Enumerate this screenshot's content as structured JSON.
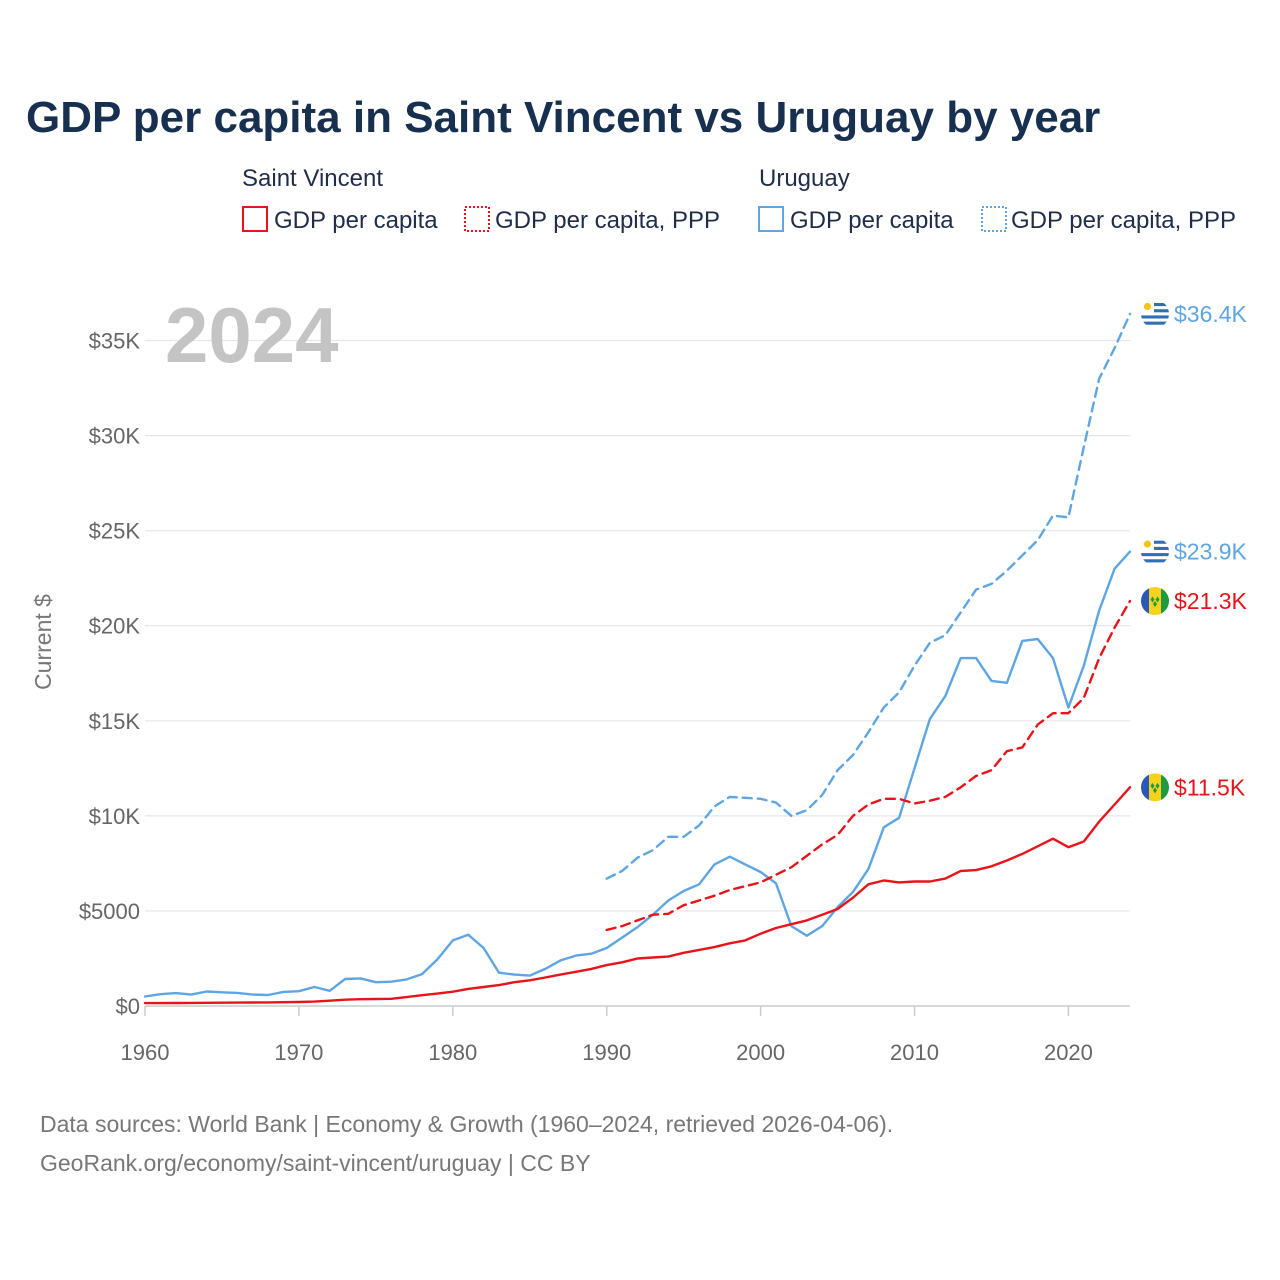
{
  "chart_data": {
    "type": "line",
    "title": "GDP per capita in Saint Vincent vs Uruguay by year",
    "year_label": "2024",
    "ylabel": "Current $",
    "xlabel": "",
    "xlim": [
      1960,
      2024
    ],
    "ylim": [
      0,
      37500
    ],
    "x_ticks": [
      {
        "value": 1960,
        "label": "1960"
      },
      {
        "value": 1970,
        "label": "1970"
      },
      {
        "value": 1980,
        "label": "1980"
      },
      {
        "value": 1990,
        "label": "1990"
      },
      {
        "value": 2000,
        "label": "2000"
      },
      {
        "value": 2010,
        "label": "2010"
      },
      {
        "value": 2020,
        "label": "2020"
      }
    ],
    "y_ticks": [
      {
        "value": 0,
        "label": "$0"
      },
      {
        "value": 5000,
        "label": "$5000"
      },
      {
        "value": 10000,
        "label": "$10K"
      },
      {
        "value": 15000,
        "label": "$15K"
      },
      {
        "value": 20000,
        "label": "$20K"
      },
      {
        "value": 25000,
        "label": "$25K"
      },
      {
        "value": 30000,
        "label": "$30K"
      },
      {
        "value": 35000,
        "label": "$35K"
      }
    ],
    "grid": true,
    "legend": {
      "groups": [
        {
          "country": "Saint Vincent",
          "items": [
            "GDP per capita",
            "GDP per capita, PPP"
          ]
        },
        {
          "country": "Uruguay",
          "items": [
            "GDP per capita",
            "GDP per capita, PPP"
          ]
        }
      ]
    },
    "series": [
      {
        "name": "Uruguay GDP per capita",
        "country": "Uruguay",
        "color": "#5ea5e4",
        "dashed": false,
        "end_label": "$23.9K",
        "flag": "uruguay-flag",
        "x": [
          1960,
          1961,
          1962,
          1963,
          1964,
          1965,
          1966,
          1967,
          1968,
          1969,
          1970,
          1971,
          1972,
          1973,
          1974,
          1975,
          1976,
          1977,
          1978,
          1979,
          1980,
          1981,
          1982,
          1983,
          1984,
          1985,
          1986,
          1987,
          1988,
          1989,
          1990,
          1991,
          1992,
          1993,
          1994,
          1995,
          1996,
          1997,
          1998,
          1999,
          2000,
          2001,
          2002,
          2003,
          2004,
          2005,
          2006,
          2007,
          2008,
          2009,
          2010,
          2011,
          2012,
          2013,
          2014,
          2015,
          2016,
          2017,
          2018,
          2019,
          2020,
          2021,
          2022,
          2023,
          2024
        ],
        "values": [
          500,
          620,
          680,
          600,
          760,
          720,
          690,
          600,
          580,
          740,
          780,
          1000,
          800,
          1420,
          1450,
          1250,
          1280,
          1400,
          1680,
          2450,
          3450,
          3750,
          3050,
          1750,
          1650,
          1600,
          1950,
          2400,
          2650,
          2750,
          3050,
          3600,
          4150,
          4800,
          5550,
          6050,
          6400,
          7450,
          7850,
          7450,
          7050,
          6450,
          4200,
          3700,
          4200,
          5200,
          6000,
          7200,
          9400,
          9900,
          12500,
          15100,
          16300,
          18300,
          18300,
          17100,
          17000,
          19200,
          19300,
          18300,
          15700,
          17900,
          20800,
          23000,
          23900
        ]
      },
      {
        "name": "Uruguay GDP per capita, PPP",
        "country": "Uruguay",
        "color": "#5ea5e4",
        "dashed": true,
        "end_label": "$36.4K",
        "flag": "uruguay-flag",
        "x": [
          1990,
          1991,
          1992,
          1993,
          1994,
          1995,
          1996,
          1997,
          1998,
          1999,
          2000,
          2001,
          2002,
          2003,
          2004,
          2005,
          2006,
          2007,
          2008,
          2009,
          2010,
          2011,
          2012,
          2013,
          2014,
          2015,
          2016,
          2017,
          2018,
          2019,
          2020,
          2021,
          2022,
          2023,
          2024
        ],
        "values": [
          6700,
          7100,
          7800,
          8200,
          8900,
          8900,
          9500,
          10500,
          11000,
          10950,
          10900,
          10700,
          10000,
          10300,
          11100,
          12400,
          13200,
          14400,
          15700,
          16500,
          17900,
          19100,
          19500,
          20700,
          21900,
          22200,
          22900,
          23700,
          24500,
          25800,
          25700,
          29400,
          33000,
          34600,
          36400
        ]
      },
      {
        "name": "Saint Vincent GDP per capita",
        "country": "Saint Vincent",
        "color": "#e8141a",
        "dashed": false,
        "end_label": "$11.5K",
        "flag": "saint-vincent-flag",
        "x": [
          1960,
          1961,
          1962,
          1963,
          1964,
          1965,
          1966,
          1967,
          1968,
          1969,
          1970,
          1971,
          1972,
          1973,
          1974,
          1975,
          1976,
          1977,
          1978,
          1979,
          1980,
          1981,
          1982,
          1983,
          1984,
          1985,
          1986,
          1987,
          1988,
          1989,
          1990,
          1991,
          1992,
          1993,
          1994,
          1995,
          1996,
          1997,
          1998,
          1999,
          2000,
          2001,
          2002,
          2003,
          2004,
          2005,
          2006,
          2007,
          2008,
          2009,
          2010,
          2011,
          2012,
          2013,
          2014,
          2015,
          2016,
          2017,
          2018,
          2019,
          2020,
          2021,
          2022,
          2023,
          2024
        ],
        "values": [
          150,
          155,
          160,
          165,
          170,
          175,
          180,
          185,
          190,
          200,
          210,
          230,
          280,
          330,
          360,
          370,
          380,
          470,
          570,
          650,
          750,
          900,
          1000,
          1100,
          1250,
          1350,
          1500,
          1650,
          1800,
          1950,
          2150,
          2300,
          2500,
          2550,
          2600,
          2800,
          2950,
          3100,
          3300,
          3450,
          3800,
          4100,
          4300,
          4500,
          4800,
          5100,
          5700,
          6400,
          6600,
          6500,
          6550,
          6550,
          6700,
          7100,
          7150,
          7350,
          7650,
          8000,
          8400,
          8800,
          8350,
          8650,
          9700,
          10600,
          11500
        ]
      },
      {
        "name": "Saint Vincent GDP per capita, PPP",
        "country": "Saint Vincent",
        "color": "#e8141a",
        "dashed": true,
        "end_label": "$21.3K",
        "flag": "saint-vincent-flag",
        "x": [
          1990,
          1991,
          1992,
          1993,
          1994,
          1995,
          1996,
          1997,
          1998,
          1999,
          2000,
          2001,
          2002,
          2003,
          2004,
          2005,
          2006,
          2007,
          2008,
          2009,
          2010,
          2011,
          2012,
          2013,
          2014,
          2015,
          2016,
          2017,
          2018,
          2019,
          2020,
          2021,
          2022,
          2023,
          2024
        ],
        "values": [
          4000,
          4200,
          4500,
          4800,
          4850,
          5300,
          5550,
          5800,
          6100,
          6300,
          6500,
          6900,
          7300,
          7900,
          8500,
          9000,
          10000,
          10600,
          10900,
          10900,
          10650,
          10800,
          11000,
          11500,
          12100,
          12400,
          13400,
          13600,
          14800,
          15400,
          15400,
          16200,
          18300,
          19900,
          21300
        ]
      }
    ]
  },
  "source": {
    "line1": "Data sources: World Bank | Economy & Growth (1960–2024, retrieved 2026-04-06).",
    "line2": "GeoRank.org/economy/saint-vincent/uruguay | CC BY"
  },
  "colors": {
    "saint_vincent": "#e8141a",
    "uruguay": "#5ea5e4",
    "title": "#17304f",
    "grid": "#e6e6e6"
  }
}
